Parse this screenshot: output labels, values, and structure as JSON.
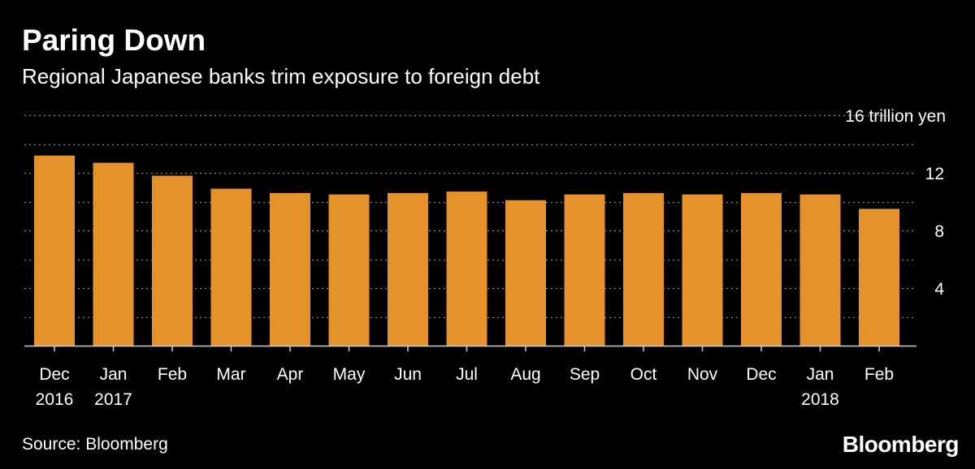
{
  "header": {
    "title": "Paring Down",
    "subtitle": "Regional Japanese banks trim exposure to foreign debt"
  },
  "footer": {
    "source": "Source: Bloomberg",
    "brand": "Bloomberg"
  },
  "colors": {
    "background": "#000000",
    "bar": "#E5922A",
    "text": "#ffffff",
    "grid": "#8a8a8a"
  },
  "chart_data": {
    "type": "bar",
    "title": "Paring Down",
    "subtitle": "Regional Japanese banks trim exposure to foreign debt",
    "unit_label": "16 trillion yen",
    "xlabel": "",
    "ylabel": "",
    "ylim": [
      0,
      16
    ],
    "yticks": [
      4,
      8,
      12
    ],
    "grid": true,
    "grid_values": [
      2,
      4,
      6,
      8,
      10,
      12,
      14,
      16
    ],
    "categories": [
      [
        "Dec",
        "2016"
      ],
      [
        "Jan",
        "2017"
      ],
      [
        "Feb",
        ""
      ],
      [
        "Mar",
        ""
      ],
      [
        "Apr",
        ""
      ],
      [
        "May",
        ""
      ],
      [
        "Jun",
        ""
      ],
      [
        "Jul",
        ""
      ],
      [
        "Aug",
        ""
      ],
      [
        "Sep",
        ""
      ],
      [
        "Oct",
        ""
      ],
      [
        "Nov",
        ""
      ],
      [
        "Dec",
        ""
      ],
      [
        "Jan",
        "2018"
      ],
      [
        "Feb",
        ""
      ]
    ],
    "values": [
      13.2,
      12.7,
      11.8,
      10.9,
      10.6,
      10.5,
      10.6,
      10.7,
      10.1,
      10.5,
      10.6,
      10.5,
      10.6,
      10.5,
      9.5
    ]
  }
}
